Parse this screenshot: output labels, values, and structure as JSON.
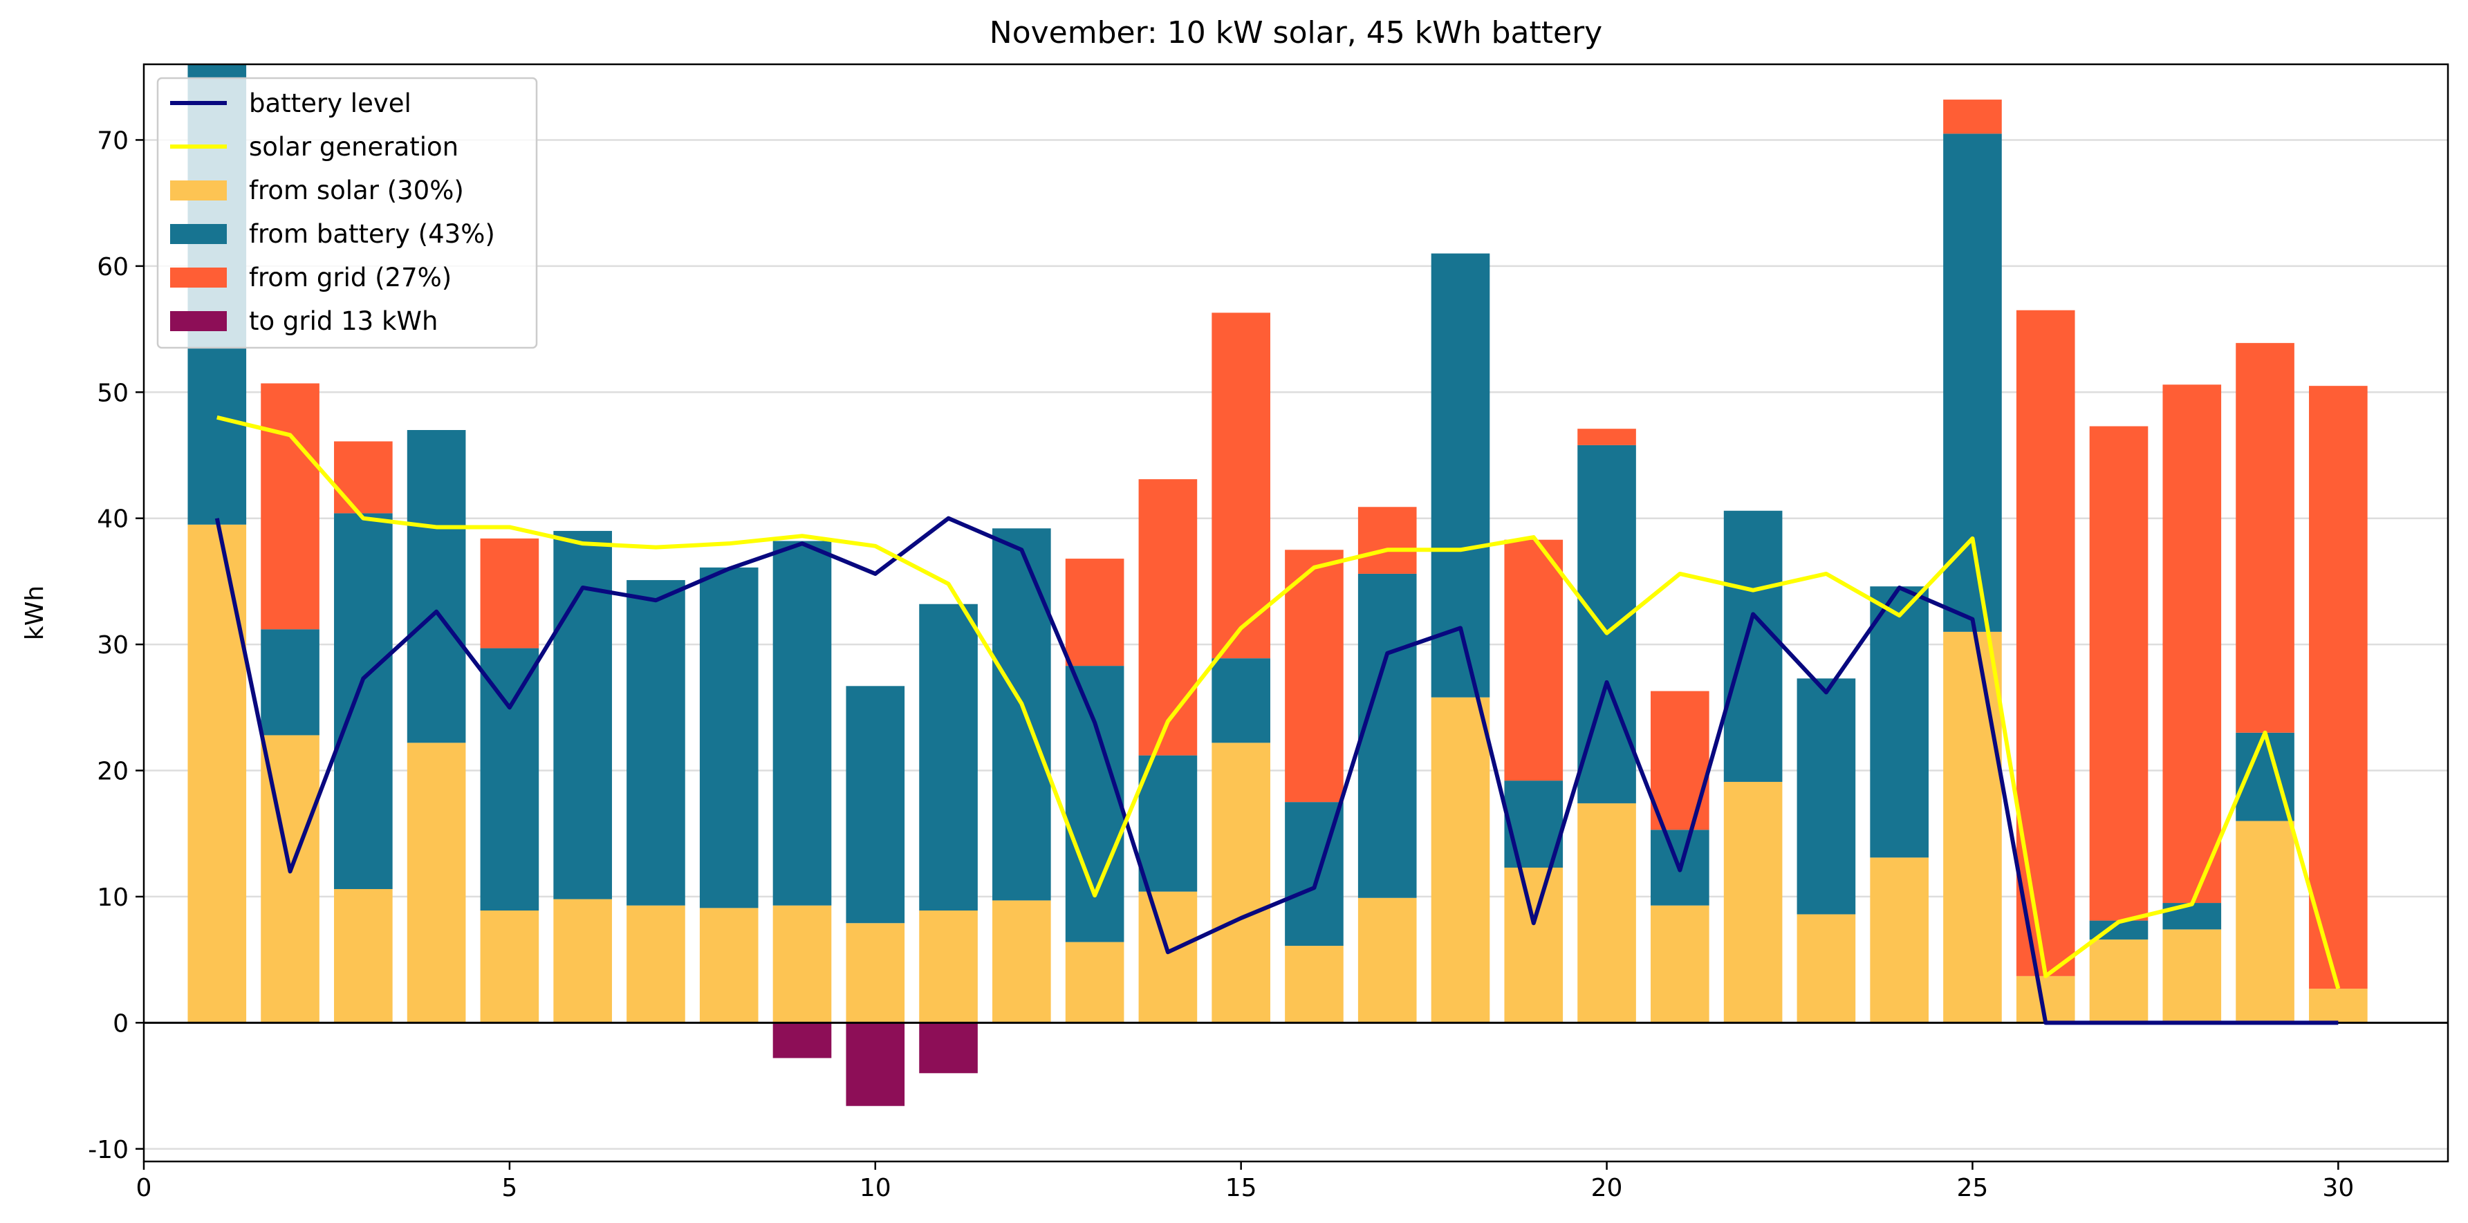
{
  "chart_data": {
    "type": "bar",
    "title": "November: 10 kW solar, 45 kWh battery",
    "xlabel": "",
    "ylabel": "kWh",
    "xlim": [
      0,
      31.5
    ],
    "ylim": [
      -11,
      76
    ],
    "x_ticks": [
      0,
      5,
      10,
      15,
      20,
      25,
      30
    ],
    "y_ticks": [
      -10,
      0,
      10,
      20,
      30,
      40,
      50,
      60,
      70
    ],
    "grid": "horizontal",
    "legend_placement": "top-left",
    "x": [
      1,
      2,
      3,
      4,
      5,
      6,
      7,
      8,
      9,
      10,
      11,
      12,
      13,
      14,
      15,
      16,
      17,
      18,
      19,
      20,
      21,
      22,
      23,
      24,
      25,
      26,
      27,
      28,
      29,
      30
    ],
    "bar_series": [
      {
        "name": "from solar (30%)",
        "color": "#fdc453",
        "values": [
          39.5,
          22.8,
          10.6,
          22.2,
          8.9,
          9.8,
          9.3,
          9.1,
          9.3,
          7.9,
          8.9,
          9.7,
          6.4,
          10.4,
          22.2,
          6.1,
          9.9,
          25.8,
          12.3,
          17.4,
          9.3,
          19.1,
          8.6,
          13.1,
          31.0,
          3.7,
          6.6,
          7.4,
          16.0,
          2.7
        ]
      },
      {
        "name": "from battery (43%)",
        "color": "#177491",
        "values": [
          36.5,
          8.4,
          29.8,
          24.8,
          20.8,
          29.2,
          25.8,
          27.0,
          28.9,
          18.8,
          24.3,
          29.5,
          21.9,
          10.8,
          6.7,
          11.4,
          25.7,
          35.2,
          6.9,
          28.4,
          6.0,
          21.5,
          18.7,
          21.5,
          39.5,
          0,
          1.5,
          2.1,
          7.0,
          0
        ]
      },
      {
        "name": "from grid (27%)",
        "color": "#ff5e35",
        "values": [
          0,
          19.5,
          5.7,
          0,
          8.7,
          0,
          0,
          0,
          0,
          0,
          0,
          0,
          8.5,
          21.9,
          27.4,
          20.0,
          5.3,
          0,
          19.1,
          1.3,
          11.0,
          0,
          0,
          0,
          2.7,
          52.8,
          39.2,
          41.1,
          30.9,
          47.8
        ]
      }
    ],
    "negative_series": {
      "name": "to grid 13 kWh",
      "color": "#8d0e57",
      "values": [
        0,
        0,
        0,
        0,
        0,
        0,
        0,
        0,
        -2.8,
        -6.6,
        -4.0,
        0,
        0,
        0,
        0,
        0,
        0,
        0,
        0,
        0,
        0,
        0,
        0,
        0,
        0,
        0,
        0,
        0,
        0,
        0
      ]
    },
    "line_series": [
      {
        "name": "battery level",
        "color": "#08087f",
        "values": [
          40.0,
          12.0,
          27.3,
          32.6,
          25.0,
          34.5,
          33.5,
          36.0,
          38.0,
          35.6,
          40.0,
          37.5,
          23.8,
          5.6,
          8.3,
          10.7,
          29.3,
          31.3,
          7.9,
          27.0,
          12.1,
          32.4,
          26.2,
          34.5,
          32.0,
          0,
          0,
          0,
          0,
          0
        ]
      },
      {
        "name": "solar generation",
        "color": "#ffff00",
        "values": [
          48.0,
          46.6,
          40.0,
          39.3,
          39.3,
          38.0,
          37.7,
          38.0,
          38.6,
          37.8,
          34.8,
          25.3,
          10.1,
          23.9,
          31.3,
          36.1,
          37.5,
          37.5,
          38.5,
          30.9,
          35.6,
          34.3,
          35.6,
          32.3,
          38.4,
          3.7,
          8.0,
          9.4,
          23.0,
          2.7
        ]
      }
    ],
    "legend_order": [
      "battery level",
      "solar generation",
      "from solar (30%)",
      "from battery (43%)",
      "from grid (27%)",
      "to grid 13 kWh"
    ]
  }
}
